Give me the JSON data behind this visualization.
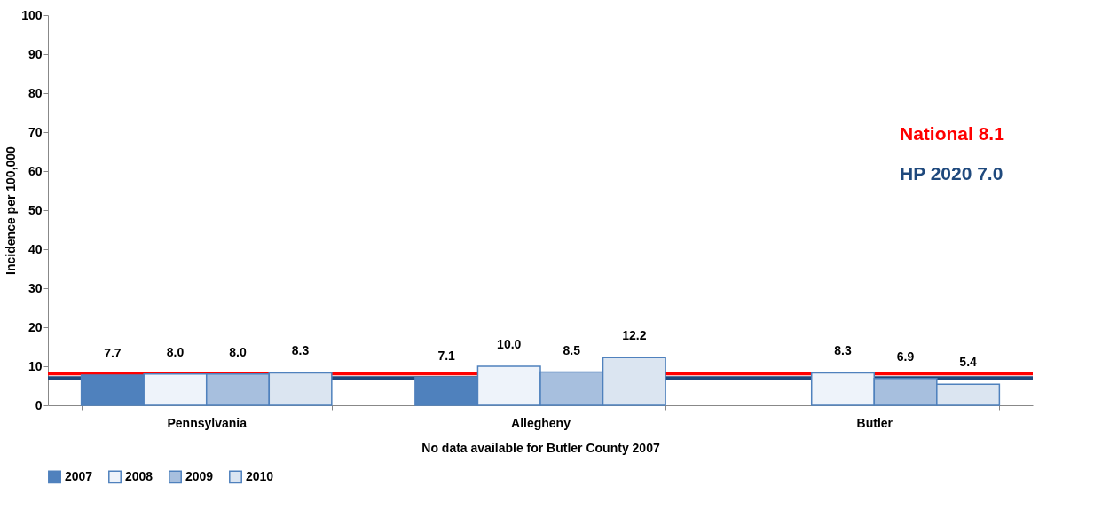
{
  "chart_data": {
    "type": "bar",
    "xlabel": "No data available for Butler County 2007",
    "ylabel": "Incidence per 100,000",
    "categories": [
      "Pennsylvania",
      "Allegheny",
      "Butler"
    ],
    "series": [
      {
        "name": "2007",
        "color": "#4f81bd",
        "values": [
          7.7,
          7.1,
          null
        ],
        "value_labels": [
          "7.7",
          "7.1",
          null
        ]
      },
      {
        "name": "2008",
        "color": "#eef3fa",
        "values": [
          8.0,
          10.0,
          8.3
        ],
        "value_labels": [
          "8.0",
          "10.0",
          "8.3"
        ]
      },
      {
        "name": "2009",
        "color": "#a7bfde",
        "values": [
          8.0,
          8.5,
          6.9
        ],
        "value_labels": [
          "8.0",
          "8.5",
          "6.9"
        ]
      },
      {
        "name": "2010",
        "color": "#dbe5f1",
        "values": [
          8.3,
          12.2,
          5.4
        ],
        "value_labels": [
          "8.3",
          "12.2",
          "5.4"
        ]
      }
    ],
    "ylim": [
      0,
      100
    ],
    "yticks": [
      0,
      10,
      20,
      30,
      40,
      50,
      60,
      70,
      80,
      90,
      100
    ],
    "grid": false,
    "legend": "bottom",
    "ref_lines": [
      {
        "axis": "y",
        "value": 8.1,
        "label": "National 8.1",
        "color": "#ff0000"
      },
      {
        "axis": "y",
        "value": 7.0,
        "label": "HP 2020 7.0",
        "color": "#1f497d"
      }
    ]
  }
}
